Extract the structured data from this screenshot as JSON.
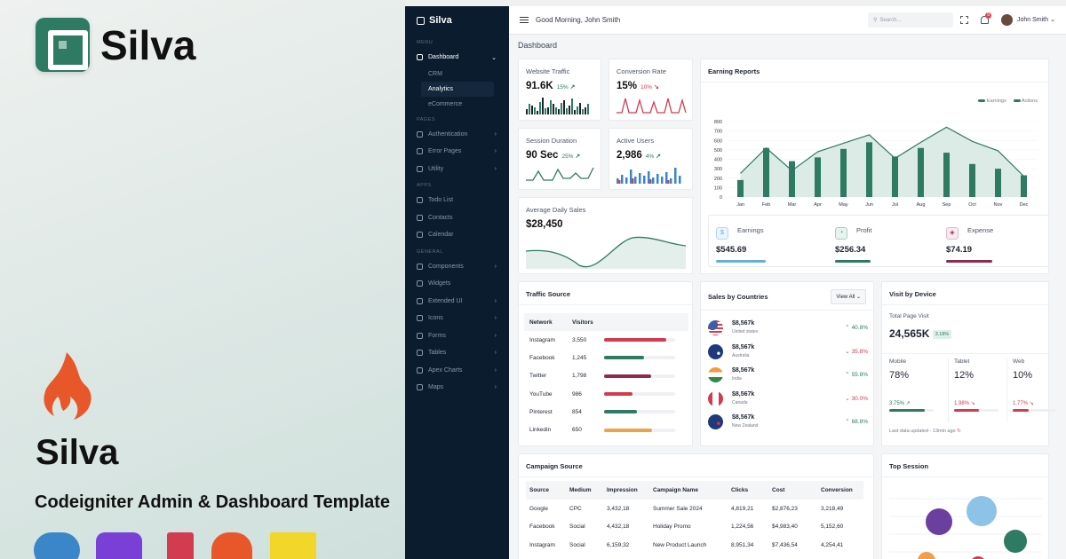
{
  "promo": {
    "brand": "Silva",
    "title": "Silva",
    "subtitle": "Codeigniter Admin & Dashboard Template"
  },
  "sidebar": {
    "brand": "Silva",
    "sections": {
      "menu": "MENU",
      "pages": "PAGES",
      "apps": "APPS",
      "general": "GENERAL"
    },
    "dashboard": "Dashboard",
    "sub": [
      "CRM",
      "Analytics",
      "eCommerce"
    ],
    "pages": [
      "Authentication",
      "Error Pages",
      "Utility"
    ],
    "apps": [
      "Todo List",
      "Contacts",
      "Calendar"
    ],
    "general": [
      "Components",
      "Widgets",
      "Extended UI",
      "Icons",
      "Forms",
      "Tables",
      "Apex Charts",
      "Maps"
    ]
  },
  "topbar": {
    "greeting": "Good Morning, John Smith",
    "search_placeholder": "Search...",
    "badge": "9",
    "user": "John Smith"
  },
  "breadcrumb": "Dashboard",
  "stats": [
    {
      "label": "Website Traffic",
      "value": "91.6K",
      "pct": "15%",
      "dir": "up"
    },
    {
      "label": "Conversion Rate",
      "value": "15%",
      "pct": "10%",
      "dir": "down"
    },
    {
      "label": "Session Duration",
      "value": "90 Sec",
      "pct": "25%",
      "dir": "up"
    },
    {
      "label": "Active Users",
      "value": "2,986",
      "pct": "4%",
      "dir": "up"
    }
  ],
  "avg_sales": {
    "label": "Average Daily Sales",
    "value": "$28,450"
  },
  "earning": {
    "title": "Earning Reports",
    "legend": [
      "Earnings",
      "Actions"
    ],
    "summary": [
      {
        "label": "Earnings",
        "value": "$545.69",
        "color": "#6aaed6"
      },
      {
        "label": "Profit",
        "value": "$256.34",
        "color": "#2f7a62"
      },
      {
        "label": "Expense",
        "value": "$74.19",
        "color": "#8e2b4f"
      }
    ]
  },
  "chart_data": {
    "type": "bar",
    "categories": [
      "Jan",
      "Feb",
      "Mar",
      "Apr",
      "May",
      "Jun",
      "Jul",
      "Aug",
      "Sep",
      "Oct",
      "Nov",
      "Dec"
    ],
    "series": [
      {
        "name": "Earnings",
        "values": [
          180,
          520,
          380,
          420,
          510,
          580,
          430,
          520,
          470,
          350,
          300,
          230
        ]
      },
      {
        "name": "Actions",
        "values": [
          250,
          520,
          280,
          480,
          570,
          660,
          410,
          580,
          740,
          590,
          490,
          220
        ]
      }
    ],
    "ylim": [
      0,
      800
    ],
    "yticks": [
      0,
      100,
      200,
      300,
      400,
      500,
      600,
      700,
      800
    ],
    "legend": "top-right"
  },
  "traffic": {
    "title": "Traffic Source",
    "headers": [
      "Network",
      "Visitors"
    ],
    "rows": [
      {
        "name": "Instagram",
        "v": "3,550",
        "f": 0.88,
        "c": "#d23b50"
      },
      {
        "name": "Facebook",
        "v": "1,245",
        "f": 0.56,
        "c": "#2f7a62"
      },
      {
        "name": "Twitter",
        "v": "1,798",
        "f": 0.66,
        "c": "#8e2b4f"
      },
      {
        "name": "YouTube",
        "v": "986",
        "f": 0.4,
        "c": "#d23b50"
      },
      {
        "name": "Pinterest",
        "v": "854",
        "f": 0.46,
        "c": "#2f7a62"
      },
      {
        "name": "Linkedin",
        "v": "650",
        "f": 0.68,
        "c": "#f0a04b"
      }
    ]
  },
  "countries": {
    "title": "Sales by Countries",
    "button": "View All",
    "rows": [
      {
        "amt": "$8,567k",
        "name": "United states",
        "pct": "40.8%",
        "dir": "up"
      },
      {
        "amt": "$8,567k",
        "name": "Australia",
        "pct": "35.8%",
        "dir": "down"
      },
      {
        "amt": "$8,567k",
        "name": "India",
        "pct": "55.8%",
        "dir": "up"
      },
      {
        "amt": "$8,567k",
        "name": "Canada",
        "pct": "30.0%",
        "dir": "down"
      },
      {
        "amt": "$8,567k",
        "name": "New Zealand",
        "pct": "68.8%",
        "dir": "up"
      }
    ]
  },
  "device": {
    "title": "Visit by Device",
    "total_label": "Total Page Visit",
    "total": "24,565K",
    "badge": "3.18%",
    "cols": [
      {
        "label": "Mobile",
        "value": "78%",
        "pct": "3.75%",
        "dir": "up",
        "c": "#2f7a62",
        "f": 0.8
      },
      {
        "label": "Tablet",
        "value": "12%",
        "pct": "1.98%",
        "dir": "down",
        "c": "#d23b50",
        "f": 0.55
      },
      {
        "label": "Web",
        "value": "10%",
        "pct": "1.77%",
        "dir": "down",
        "c": "#d23b50",
        "f": 0.35
      }
    ],
    "footer": "Last data updated - 13min ago"
  },
  "campaign": {
    "title": "Campaign Source",
    "headers": [
      "Source",
      "Medium",
      "Impression",
      "Campaign Name",
      "Clicks",
      "Cost",
      "Conversion"
    ],
    "rows": [
      [
        "Google",
        "CPC",
        "3,432,18",
        "Summer Sale 2024",
        "4,819,21",
        "$2,876,23",
        "3,218,49"
      ],
      [
        "Facebook",
        "Social",
        "4,432,18",
        "Holiday Promo",
        "1,224,56",
        "$4,983,40",
        "5,152,60"
      ],
      [
        "Instagram",
        "Social",
        "6,159,32",
        "New Product Launch",
        "8,951,34",
        "$7,436,54",
        "4,254,41"
      ]
    ]
  },
  "session": {
    "title": "Top Session"
  }
}
